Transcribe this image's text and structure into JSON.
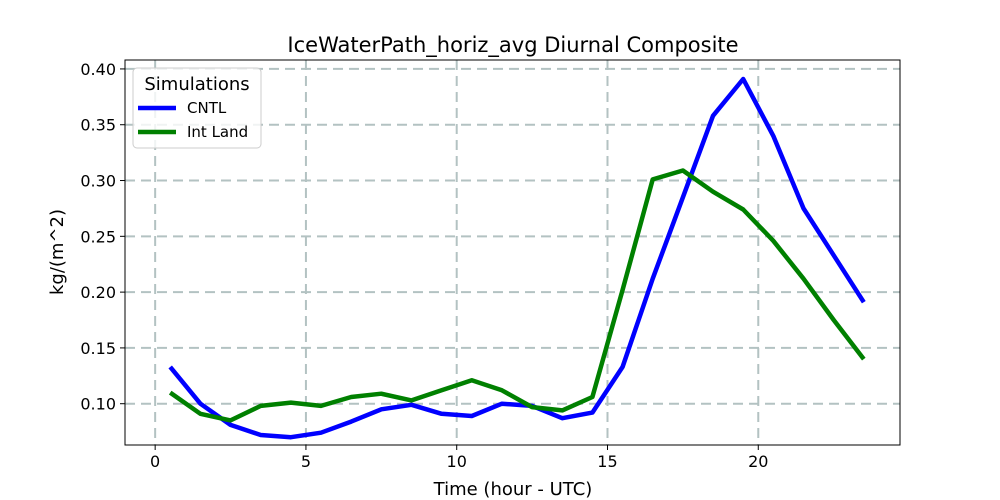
{
  "chart_data": {
    "type": "line",
    "title": "IceWaterPath_horiz_avg Diurnal Composite",
    "xlabel": "Time (hour - UTC)",
    "ylabel": "kg/(m^2)",
    "xlim": [
      -1.0,
      24.7
    ],
    "ylim": [
      0.063,
      0.408
    ],
    "xticks": [
      0,
      5,
      10,
      15,
      20
    ],
    "xtick_labels": [
      "0",
      "5",
      "10",
      "15",
      "20"
    ],
    "yticks": [
      0.1,
      0.15,
      0.2,
      0.25,
      0.3,
      0.35,
      0.4
    ],
    "ytick_labels": [
      "0.10",
      "0.15",
      "0.20",
      "0.25",
      "0.30",
      "0.35",
      "0.40"
    ],
    "grid": true,
    "legend": {
      "title": "Simulations",
      "location": "top-left"
    },
    "x": [
      0.5,
      1.5,
      2.5,
      3.5,
      4.5,
      5.5,
      6.5,
      7.5,
      8.5,
      9.5,
      10.5,
      11.5,
      12.5,
      13.5,
      14.5,
      15.5,
      16.5,
      17.5,
      18.5,
      19.5,
      20.5,
      21.5,
      22.5,
      23.5
    ],
    "series": [
      {
        "name": "CNTL",
        "color": "#0000ff",
        "values": [
          0.133,
          0.1,
          0.081,
          0.072,
          0.07,
          0.074,
          0.084,
          0.095,
          0.099,
          0.091,
          0.089,
          0.1,
          0.098,
          0.087,
          0.092,
          0.133,
          0.212,
          0.285,
          0.358,
          0.391,
          0.34,
          0.275,
          0.233,
          0.191
        ]
      },
      {
        "name": "Int Land",
        "color": "#008000",
        "values": [
          0.11,
          0.091,
          0.085,
          0.098,
          0.101,
          0.098,
          0.106,
          0.109,
          0.103,
          0.112,
          0.121,
          0.112,
          0.097,
          0.094,
          0.106,
          0.202,
          0.301,
          0.309,
          0.29,
          0.274,
          0.246,
          0.212,
          0.175,
          0.14
        ]
      }
    ]
  }
}
